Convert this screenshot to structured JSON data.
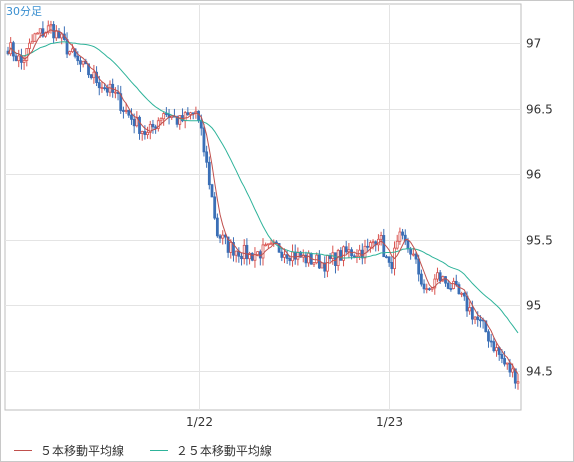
{
  "chart_data": {
    "type": "candlestick",
    "title": "30分足",
    "ylim": [
      94.2,
      97.3
    ],
    "y_ticks": [
      "97",
      "96.5",
      "96",
      "95.5",
      "95",
      "94.5"
    ],
    "y_tick_values": [
      97,
      96.5,
      96,
      95.5,
      95,
      94.5
    ],
    "x_ticks": [
      {
        "label": "1/22",
        "index": 71
      },
      {
        "label": "1/23",
        "index": 142
      }
    ],
    "grid": true,
    "colors": {
      "up": "#d9534f",
      "down": "#3b6fb6",
      "ma5": "#c0504d",
      "ma25": "#2eb39a",
      "grid": "#e4e4e4"
    },
    "anchors": [
      [
        0,
        96.98
      ],
      [
        5,
        96.85
      ],
      [
        10,
        97.05
      ],
      [
        16,
        97.12
      ],
      [
        20,
        97.02
      ],
      [
        26,
        96.85
      ],
      [
        33,
        96.72
      ],
      [
        40,
        96.6
      ],
      [
        45,
        96.45
      ],
      [
        52,
        96.3
      ],
      [
        58,
        96.48
      ],
      [
        64,
        96.4
      ],
      [
        70,
        96.48
      ],
      [
        72,
        96.3
      ],
      [
        75,
        95.95
      ],
      [
        78,
        95.55
      ],
      [
        82,
        95.45
      ],
      [
        90,
        95.38
      ],
      [
        100,
        95.44
      ],
      [
        110,
        95.36
      ],
      [
        118,
        95.32
      ],
      [
        126,
        95.4
      ],
      [
        134,
        95.42
      ],
      [
        138,
        95.55
      ],
      [
        142,
        95.28
      ],
      [
        146,
        95.5
      ],
      [
        150,
        95.42
      ],
      [
        156,
        95.08
      ],
      [
        160,
        95.22
      ],
      [
        165,
        95.15
      ],
      [
        170,
        95.02
      ],
      [
        178,
        94.8
      ],
      [
        185,
        94.55
      ],
      [
        190,
        94.44
      ]
    ],
    "legend": [
      {
        "label": "５本移動平均線",
        "color": "#c0504d"
      },
      {
        "label": "２５本移動平均線",
        "color": "#2eb39a"
      }
    ]
  }
}
